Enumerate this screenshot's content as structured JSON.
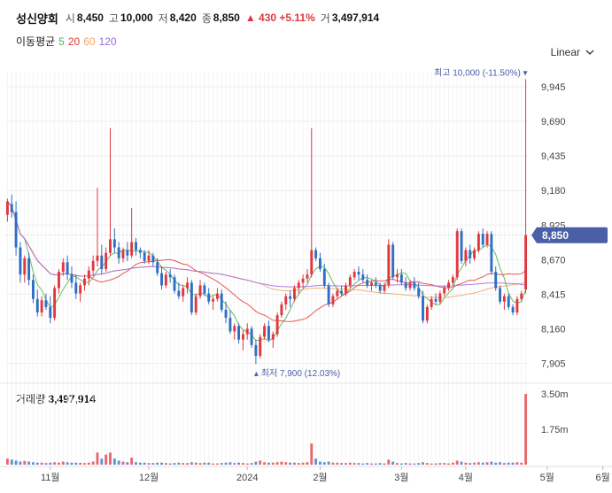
{
  "header": {
    "name": "성신양회",
    "open_label": "시",
    "open": "8,450",
    "high_label": "고",
    "high": "10,000",
    "low_label": "저",
    "low": "8,420",
    "close_label": "종",
    "close": "8,850",
    "change": "▲ 430 +5.11%",
    "volume_label": "거",
    "volume": "3,497,914"
  },
  "ma": {
    "label": "이동평균",
    "periods": [
      {
        "value": "5",
        "color": "#4caf50"
      },
      {
        "value": "20",
        "color": "#e53935"
      },
      {
        "value": "60",
        "color": "#f4a261"
      },
      {
        "value": "120",
        "color": "#9c6ade"
      }
    ]
  },
  "scale": {
    "label": "Linear"
  },
  "annotations": {
    "high": "최고 10,000 (-11.50%) ▾",
    "low": "▴ 최저 7,900 (12.03%)"
  },
  "price_tag": "8,850",
  "volume_panel": {
    "label": "거래량",
    "value": "3,497,914"
  },
  "colors": {
    "up": "#e0383e",
    "down": "#2f6ec2",
    "tag": "#4a5fa6"
  },
  "chart_data": {
    "type": "candlestick",
    "y_ticks": [
      "9,945",
      "9,690",
      "9,435",
      "9,180",
      "8,925",
      "8,670",
      "8,415",
      "8,160",
      "7,905"
    ],
    "y_range": [
      7810,
      10050
    ],
    "x_ticks": [
      "11월",
      "12월",
      "2024",
      "2월",
      "3월",
      "4월",
      "5월",
      "6월"
    ],
    "volume_ticks": [
      "3.50m",
      "1.75m"
    ],
    "ohlc": [
      [
        9000,
        9120,
        8950,
        9100
      ],
      [
        9080,
        9150,
        8980,
        9020
      ],
      [
        9020,
        9100,
        8700,
        8760
      ],
      [
        8760,
        8800,
        8500,
        8560
      ],
      [
        8560,
        8700,
        8500,
        8680
      ],
      [
        8680,
        8720,
        8480,
        8520
      ],
      [
        8520,
        8560,
        8350,
        8380
      ],
      [
        8380,
        8450,
        8250,
        8280
      ],
      [
        8280,
        8400,
        8250,
        8370
      ],
      [
        8370,
        8420,
        8300,
        8320
      ],
      [
        8320,
        8400,
        8200,
        8240
      ],
      [
        8240,
        8480,
        8220,
        8460
      ],
      [
        8460,
        8600,
        8420,
        8580
      ],
      [
        8580,
        8680,
        8550,
        8650
      ],
      [
        8650,
        8700,
        8520,
        8560
      ],
      [
        8560,
        8620,
        8460,
        8500
      ],
      [
        8500,
        8560,
        8380,
        8420
      ],
      [
        8420,
        8500,
        8360,
        8480
      ],
      [
        8480,
        8560,
        8440,
        8530
      ],
      [
        8530,
        8620,
        8480,
        8590
      ],
      [
        8590,
        8700,
        8550,
        8660
      ],
      [
        8660,
        9200,
        8620,
        8700
      ],
      [
        8700,
        8780,
        8560,
        8600
      ],
      [
        8600,
        8760,
        8580,
        8720
      ],
      [
        8720,
        9640,
        8700,
        8820
      ],
      [
        8820,
        8900,
        8720,
        8760
      ],
      [
        8760,
        8800,
        8640,
        8680
      ],
      [
        8680,
        8760,
        8650,
        8740
      ],
      [
        8740,
        8800,
        8660,
        8700
      ],
      [
        8700,
        9050,
        8680,
        8800
      ],
      [
        8800,
        8830,
        8700,
        8740
      ],
      [
        8740,
        8760,
        8680,
        8720
      ],
      [
        8720,
        8740,
        8640,
        8660
      ],
      [
        8660,
        8740,
        8640,
        8700
      ],
      [
        8700,
        8720,
        8620,
        8650
      ],
      [
        8650,
        8680,
        8550,
        8570
      ],
      [
        8570,
        8620,
        8450,
        8480
      ],
      [
        8480,
        8580,
        8460,
        8560
      ],
      [
        8560,
        8600,
        8500,
        8540
      ],
      [
        8540,
        8560,
        8420,
        8440
      ],
      [
        8440,
        8500,
        8380,
        8400
      ],
      [
        8400,
        8480,
        8360,
        8460
      ],
      [
        8460,
        8540,
        8420,
        8500
      ],
      [
        8500,
        8520,
        8260,
        8280
      ],
      [
        8280,
        8420,
        8260,
        8400
      ],
      [
        8400,
        8520,
        8380,
        8480
      ],
      [
        8480,
        8500,
        8400,
        8420
      ],
      [
        8420,
        8460,
        8340,
        8360
      ],
      [
        8360,
        8400,
        8300,
        8380
      ],
      [
        8380,
        8460,
        8360,
        8420
      ],
      [
        8420,
        8450,
        8280,
        8300
      ],
      [
        8300,
        8360,
        8200,
        8240
      ],
      [
        8240,
        8300,
        8120,
        8140
      ],
      [
        8140,
        8200,
        8080,
        8180
      ],
      [
        8180,
        8200,
        8050,
        8080
      ],
      [
        8080,
        8150,
        8000,
        8120
      ],
      [
        8120,
        8200,
        8080,
        8160
      ],
      [
        8160,
        8180,
        8020,
        8040
      ],
      [
        8040,
        8080,
        7900,
        7960
      ],
      [
        7960,
        8120,
        7940,
        8100
      ],
      [
        8100,
        8200,
        8080,
        8180
      ],
      [
        8180,
        8220,
        8060,
        8080
      ],
      [
        8080,
        8140,
        8020,
        8120
      ],
      [
        8120,
        8280,
        8100,
        8260
      ],
      [
        8260,
        8360,
        8240,
        8340
      ],
      [
        8340,
        8420,
        8300,
        8400
      ],
      [
        8400,
        8440,
        8320,
        8380
      ],
      [
        8380,
        8480,
        8360,
        8460
      ],
      [
        8460,
        8520,
        8420,
        8500
      ],
      [
        8500,
        8560,
        8460,
        8530
      ],
      [
        8530,
        8600,
        8500,
        8560
      ],
      [
        8560,
        9640,
        8540,
        8740
      ],
      [
        8740,
        8760,
        8660,
        8680
      ],
      [
        8680,
        8720,
        8580,
        8600
      ],
      [
        8600,
        8640,
        8460,
        8480
      ],
      [
        8480,
        8500,
        8320,
        8340
      ],
      [
        8340,
        8420,
        8320,
        8400
      ],
      [
        8400,
        8460,
        8380,
        8440
      ],
      [
        8440,
        8480,
        8400,
        8420
      ],
      [
        8420,
        8500,
        8400,
        8480
      ],
      [
        8480,
        8560,
        8460,
        8540
      ],
      [
        8540,
        8600,
        8520,
        8580
      ],
      [
        8580,
        8620,
        8520,
        8560
      ],
      [
        8560,
        8600,
        8500,
        8520
      ],
      [
        8520,
        8560,
        8460,
        8480
      ],
      [
        8480,
        8520,
        8440,
        8500
      ],
      [
        8500,
        8540,
        8460,
        8480
      ],
      [
        8480,
        8500,
        8420,
        8440
      ],
      [
        8440,
        8500,
        8420,
        8480
      ],
      [
        8480,
        8820,
        8460,
        8780
      ],
      [
        8780,
        8800,
        8520,
        8540
      ],
      [
        8540,
        8600,
        8500,
        8560
      ],
      [
        8560,
        8600,
        8480,
        8500
      ],
      [
        8500,
        8540,
        8440,
        8460
      ],
      [
        8460,
        8520,
        8440,
        8500
      ],
      [
        8500,
        8540,
        8440,
        8460
      ],
      [
        8460,
        8500,
        8380,
        8400
      ],
      [
        8400,
        8440,
        8200,
        8220
      ],
      [
        8220,
        8340,
        8200,
        8320
      ],
      [
        8320,
        8400,
        8300,
        8380
      ],
      [
        8380,
        8420,
        8340,
        8360
      ],
      [
        8360,
        8440,
        8340,
        8420
      ],
      [
        8420,
        8480,
        8400,
        8460
      ],
      [
        8460,
        8520,
        8440,
        8500
      ],
      [
        8500,
        8560,
        8480,
        8540
      ],
      [
        8540,
        8900,
        8520,
        8880
      ],
      [
        8880,
        8900,
        8640,
        8660
      ],
      [
        8660,
        8760,
        8620,
        8740
      ],
      [
        8740,
        8780,
        8640,
        8680
      ],
      [
        8680,
        8760,
        8660,
        8740
      ],
      [
        8740,
        8880,
        8720,
        8860
      ],
      [
        8860,
        8900,
        8760,
        8780
      ],
      [
        8780,
        8880,
        8760,
        8860
      ],
      [
        8860,
        8880,
        8560,
        8580
      ],
      [
        8580,
        8620,
        8440,
        8460
      ],
      [
        8460,
        8480,
        8340,
        8360
      ],
      [
        8360,
        8420,
        8300,
        8400
      ],
      [
        8400,
        8420,
        8300,
        8320
      ],
      [
        8320,
        8340,
        8260,
        8280
      ],
      [
        8280,
        8400,
        8260,
        8380
      ],
      [
        8380,
        8440,
        8360,
        8420
      ],
      [
        8450,
        10000,
        8420,
        8850
      ]
    ],
    "volume": [
      0.3,
      0.25,
      0.2,
      0.15,
      0.18,
      0.15,
      0.12,
      0.1,
      0.1,
      0.08,
      0.1,
      0.12,
      0.1,
      0.15,
      0.12,
      0.1,
      0.1,
      0.09,
      0.08,
      0.1,
      0.15,
      0.6,
      0.3,
      0.5,
      0.6,
      0.3,
      0.2,
      0.15,
      0.12,
      0.35,
      0.12,
      0.1,
      0.1,
      0.08,
      0.08,
      0.1,
      0.1,
      0.08,
      0.06,
      0.08,
      0.1,
      0.08,
      0.08,
      0.12,
      0.1,
      0.08,
      0.1,
      0.1,
      0.06,
      0.06,
      0.08,
      0.1,
      0.12,
      0.08,
      0.1,
      0.08,
      0.06,
      0.08,
      0.15,
      0.2,
      0.12,
      0.1,
      0.1,
      0.12,
      0.15,
      0.12,
      0.1,
      0.1,
      0.08,
      0.1,
      0.12,
      1.05,
      0.3,
      0.15,
      0.12,
      0.15,
      0.1,
      0.1,
      0.08,
      0.08,
      0.1,
      0.08,
      0.08,
      0.06,
      0.08,
      0.06,
      0.06,
      0.08,
      0.06,
      0.25,
      0.15,
      0.08,
      0.06,
      0.08,
      0.06,
      0.06,
      0.08,
      0.12,
      0.08,
      0.06,
      0.06,
      0.08,
      0.08,
      0.06,
      0.1,
      0.2,
      0.15,
      0.1,
      0.08,
      0.1,
      0.12,
      0.1,
      0.12,
      0.15,
      0.1,
      0.12,
      0.08,
      0.1,
      0.1,
      0.12,
      0.1,
      3.5
    ]
  }
}
